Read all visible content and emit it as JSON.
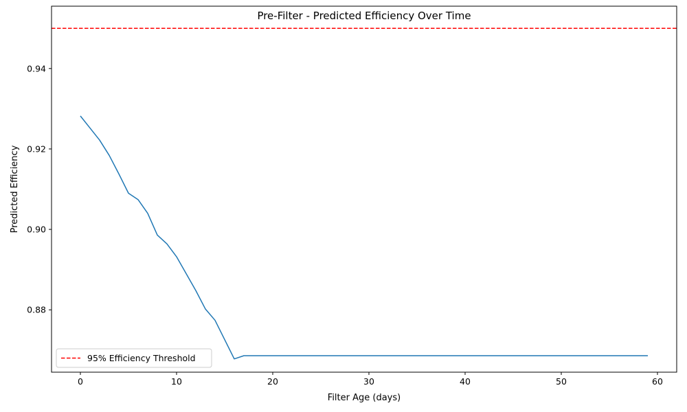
{
  "chart_data": {
    "type": "line",
    "title": "Pre-Filter - Predicted Efficiency Over Time",
    "xlabel": "Filter Age (days)",
    "ylabel": "Predicted Efficiency",
    "xlim": [
      -3,
      62
    ],
    "ylim": [
      0.8645,
      0.9555
    ],
    "xticks": [
      0,
      10,
      20,
      30,
      40,
      50,
      60
    ],
    "xtick_labels": [
      "0",
      "10",
      "20",
      "30",
      "40",
      "50",
      "60"
    ],
    "yticks": [
      0.88,
      0.9,
      0.92,
      0.94
    ],
    "ytick_labels": [
      "0.88",
      "0.90",
      "0.92",
      "0.94"
    ],
    "grid": false,
    "legend_position": "lower-left",
    "series": [
      {
        "color": "#1f77b4",
        "x": [
          0,
          1,
          2,
          3,
          4,
          5,
          6,
          7,
          8,
          9,
          10,
          11,
          12,
          13,
          14,
          15,
          16,
          17,
          18,
          19,
          20,
          21,
          22,
          23,
          24,
          25,
          26,
          27,
          28,
          29,
          30,
          31,
          32,
          33,
          34,
          35,
          36,
          37,
          38,
          39,
          40,
          41,
          42,
          43,
          44,
          45,
          46,
          47,
          48,
          49,
          50,
          51,
          52,
          53,
          54,
          55,
          56,
          57,
          58,
          59
        ],
        "values": [
          0.9282,
          0.9252,
          0.9222,
          0.9184,
          0.9138,
          0.909,
          0.9074,
          0.904,
          0.8986,
          0.8964,
          0.8932,
          0.889,
          0.8848,
          0.8802,
          0.8774,
          0.8726,
          0.8678,
          0.8686,
          0.8686,
          0.8686,
          0.8686,
          0.8686,
          0.8686,
          0.8686,
          0.8686,
          0.8686,
          0.8686,
          0.8686,
          0.8686,
          0.8686,
          0.8686,
          0.8686,
          0.8686,
          0.8686,
          0.8686,
          0.8686,
          0.8686,
          0.8686,
          0.8686,
          0.8686,
          0.8686,
          0.8686,
          0.8686,
          0.8686,
          0.8686,
          0.8686,
          0.8686,
          0.8686,
          0.8686,
          0.8686,
          0.8686,
          0.8686,
          0.8686,
          0.8686,
          0.8686,
          0.8686,
          0.8686,
          0.8686,
          0.8686,
          0.8686
        ]
      }
    ],
    "threshold": {
      "name": "95% Efficiency Threshold",
      "value": 0.95,
      "color": "#ff0000",
      "style": "dashed"
    }
  }
}
